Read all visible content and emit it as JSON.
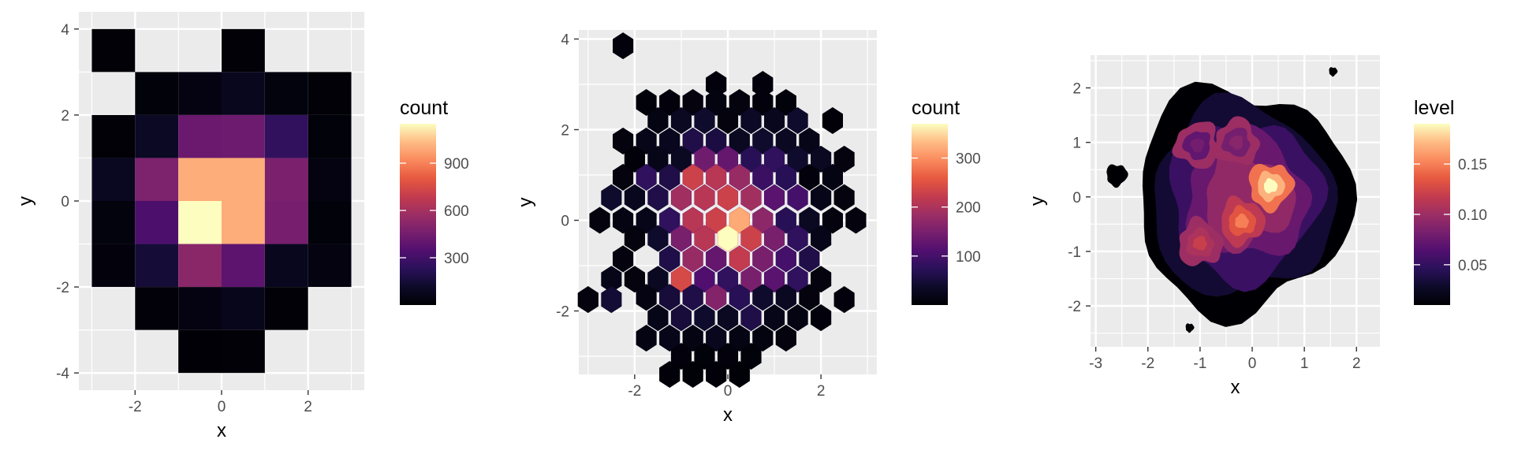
{
  "palette": [
    "#000004",
    "#0d0a29",
    "#2a115a",
    "#510f6f",
    "#771f6e",
    "#9c2e64",
    "#c43c4e",
    "#e75940",
    "#fa8a5e",
    "#febc85",
    "#fcfdbf"
  ],
  "panel_background": "#ebebeb",
  "grid_color": "#ffffff",
  "chart_data": [
    {
      "type": "heatmap",
      "name": "bin2d",
      "xlabel": "x",
      "ylabel": "y",
      "xlim": [
        -3.3,
        3.3
      ],
      "ylim": [
        -4.4,
        4.4
      ],
      "x_ticks": [
        -2,
        0,
        2
      ],
      "y_ticks": [
        -4,
        -2,
        0,
        2,
        4
      ],
      "x_tick_labels": [
        "-2",
        "0",
        "2"
      ],
      "y_tick_labels": [
        "-4",
        "-2",
        "0",
        "2",
        "4"
      ],
      "grid": true,
      "legend": {
        "title": "count",
        "ticks": [
          300,
          600,
          900
        ],
        "tick_labels": [
          "300",
          "600",
          "900"
        ],
        "range": [
          0,
          1150
        ],
        "position": "right"
      },
      "bin_width": [
        1,
        1
      ],
      "bins": [
        {
          "x": -2.5,
          "y": 3.5,
          "value": 8
        },
        {
          "x": 0.5,
          "y": 3.5,
          "value": 8
        },
        {
          "x": -1.5,
          "y": 2.5,
          "value": 20
        },
        {
          "x": -0.5,
          "y": 2.5,
          "value": 40
        },
        {
          "x": 0.5,
          "y": 2.5,
          "value": 80
        },
        {
          "x": 1.5,
          "y": 2.5,
          "value": 30
        },
        {
          "x": 2.5,
          "y": 2.5,
          "value": 10
        },
        {
          "x": -2.5,
          "y": 1.5,
          "value": 10
        },
        {
          "x": -1.5,
          "y": 1.5,
          "value": 100
        },
        {
          "x": -0.5,
          "y": 1.5,
          "value": 420
        },
        {
          "x": 0.5,
          "y": 1.5,
          "value": 430
        },
        {
          "x": 1.5,
          "y": 1.5,
          "value": 250
        },
        {
          "x": 2.5,
          "y": 1.5,
          "value": 20
        },
        {
          "x": -2.5,
          "y": 0.5,
          "value": 90
        },
        {
          "x": -1.5,
          "y": 0.5,
          "value": 480
        },
        {
          "x": -0.5,
          "y": 0.5,
          "value": 1000
        },
        {
          "x": 0.5,
          "y": 0.5,
          "value": 1000
        },
        {
          "x": 1.5,
          "y": 0.5,
          "value": 470
        },
        {
          "x": 2.5,
          "y": 0.5,
          "value": 40
        },
        {
          "x": -2.5,
          "y": -0.5,
          "value": 30
        },
        {
          "x": -1.5,
          "y": -0.5,
          "value": 330
        },
        {
          "x": -0.5,
          "y": -0.5,
          "value": 1150
        },
        {
          "x": 0.5,
          "y": -0.5,
          "value": 1000
        },
        {
          "x": 1.5,
          "y": -0.5,
          "value": 460
        },
        {
          "x": 2.5,
          "y": -0.5,
          "value": 20
        },
        {
          "x": -2.5,
          "y": -1.5,
          "value": 25
        },
        {
          "x": -1.5,
          "y": -1.5,
          "value": 150
        },
        {
          "x": -0.5,
          "y": -1.5,
          "value": 520
        },
        {
          "x": 0.5,
          "y": -1.5,
          "value": 380
        },
        {
          "x": 1.5,
          "y": -1.5,
          "value": 80
        },
        {
          "x": 2.5,
          "y": -1.5,
          "value": 35
        },
        {
          "x": -1.5,
          "y": -2.5,
          "value": 15
        },
        {
          "x": -0.5,
          "y": -2.5,
          "value": 40
        },
        {
          "x": 0.5,
          "y": -2.5,
          "value": 70
        },
        {
          "x": 1.5,
          "y": -2.5,
          "value": 10
        },
        {
          "x": -0.5,
          "y": -3.5,
          "value": 5
        },
        {
          "x": 0.5,
          "y": -3.5,
          "value": 8
        }
      ]
    },
    {
      "type": "heatmap",
      "name": "hexbin",
      "xlabel": "x",
      "ylabel": "y",
      "xlim": [
        -3.2,
        3.2
      ],
      "ylim": [
        -3.4,
        4.2
      ],
      "x_ticks": [
        -2,
        0,
        2
      ],
      "y_ticks": [
        -2,
        0,
        2,
        4
      ],
      "x_tick_labels": [
        "-2",
        "0",
        "2"
      ],
      "y_tick_labels": [
        "-2",
        "0",
        "2",
        "4"
      ],
      "grid": true,
      "legend": {
        "title": "count",
        "ticks": [
          100,
          200,
          300
        ],
        "tick_labels": [
          "100",
          "200",
          "300"
        ],
        "range": [
          0,
          370
        ],
        "position": "right"
      },
      "hex_size": [
        0.5,
        0.58
      ],
      "hexes": [
        {
          "x": -2.25,
          "y": 3.85,
          "value": 8
        },
        {
          "x": -0.25,
          "y": 3.0,
          "value": 8
        },
        {
          "x": 0.75,
          "y": 3.0,
          "value": 8
        },
        {
          "x": -1.75,
          "y": 2.6,
          "value": 6
        },
        {
          "x": -1.25,
          "y": 2.6,
          "value": 8
        },
        {
          "x": -0.75,
          "y": 2.6,
          "value": 10
        },
        {
          "x": -0.25,
          "y": 2.6,
          "value": 12
        },
        {
          "x": 0.25,
          "y": 2.6,
          "value": 10
        },
        {
          "x": 0.75,
          "y": 2.6,
          "value": 8
        },
        {
          "x": 1.25,
          "y": 2.6,
          "value": 6
        },
        {
          "x": -1.5,
          "y": 2.2,
          "value": 15
        },
        {
          "x": -1.0,
          "y": 2.2,
          "value": 30
        },
        {
          "x": -0.5,
          "y": 2.2,
          "value": 40
        },
        {
          "x": 0.0,
          "y": 2.2,
          "value": 10
        },
        {
          "x": 0.5,
          "y": 2.2,
          "value": 35
        },
        {
          "x": 1.0,
          "y": 2.2,
          "value": 25
        },
        {
          "x": 1.5,
          "y": 2.2,
          "value": 40
        },
        {
          "x": 2.25,
          "y": 2.2,
          "value": 5
        },
        {
          "x": -2.25,
          "y": 1.75,
          "value": 10
        },
        {
          "x": -1.75,
          "y": 1.75,
          "value": 20
        },
        {
          "x": -1.25,
          "y": 1.75,
          "value": 25
        },
        {
          "x": -0.75,
          "y": 1.75,
          "value": 60
        },
        {
          "x": -0.25,
          "y": 1.75,
          "value": 55
        },
        {
          "x": 0.25,
          "y": 1.75,
          "value": 30
        },
        {
          "x": 0.75,
          "y": 1.75,
          "value": 40
        },
        {
          "x": 1.25,
          "y": 1.75,
          "value": 30
        },
        {
          "x": 1.75,
          "y": 1.75,
          "value": 20
        },
        {
          "x": -2.0,
          "y": 1.35,
          "value": 5
        },
        {
          "x": -1.5,
          "y": 1.35,
          "value": 20
        },
        {
          "x": -1.0,
          "y": 1.35,
          "value": 30
        },
        {
          "x": -0.5,
          "y": 1.35,
          "value": 140
        },
        {
          "x": 0.0,
          "y": 1.35,
          "value": 130
        },
        {
          "x": 0.5,
          "y": 1.35,
          "value": 70
        },
        {
          "x": 1.0,
          "y": 1.35,
          "value": 80
        },
        {
          "x": 1.5,
          "y": 1.35,
          "value": 40
        },
        {
          "x": 2.0,
          "y": 1.35,
          "value": 30
        },
        {
          "x": 2.5,
          "y": 1.35,
          "value": 10
        },
        {
          "x": -2.25,
          "y": 0.95,
          "value": 10
        },
        {
          "x": -1.75,
          "y": 0.95,
          "value": 80
        },
        {
          "x": -1.25,
          "y": 0.95,
          "value": 60
        },
        {
          "x": -0.75,
          "y": 0.95,
          "value": 230
        },
        {
          "x": -0.25,
          "y": 0.95,
          "value": 210
        },
        {
          "x": 0.25,
          "y": 0.95,
          "value": 180
        },
        {
          "x": 0.75,
          "y": 0.95,
          "value": 90
        },
        {
          "x": 1.25,
          "y": 0.95,
          "value": 70
        },
        {
          "x": 1.75,
          "y": 0.95,
          "value": 8
        },
        {
          "x": 2.25,
          "y": 0.95,
          "value": 15
        },
        {
          "x": -2.5,
          "y": 0.5,
          "value": 40
        },
        {
          "x": -2.0,
          "y": 0.5,
          "value": 25
        },
        {
          "x": -1.5,
          "y": 0.5,
          "value": 60
        },
        {
          "x": -1.0,
          "y": 0.5,
          "value": 190
        },
        {
          "x": -0.5,
          "y": 0.5,
          "value": 210
        },
        {
          "x": 0.0,
          "y": 0.5,
          "value": 230
        },
        {
          "x": 0.5,
          "y": 0.5,
          "value": 190
        },
        {
          "x": 1.0,
          "y": 0.5,
          "value": 120
        },
        {
          "x": 1.5,
          "y": 0.5,
          "value": 100
        },
        {
          "x": 2.0,
          "y": 0.5,
          "value": 20
        },
        {
          "x": 2.5,
          "y": 0.5,
          "value": 10
        },
        {
          "x": -2.75,
          "y": 0.0,
          "value": 10
        },
        {
          "x": -2.25,
          "y": 0.0,
          "value": 15
        },
        {
          "x": -1.75,
          "y": 0.0,
          "value": 20
        },
        {
          "x": -1.25,
          "y": 0.0,
          "value": 80
        },
        {
          "x": -0.75,
          "y": 0.0,
          "value": 210
        },
        {
          "x": -0.25,
          "y": 0.0,
          "value": 230
        },
        {
          "x": 0.25,
          "y": 0.0,
          "value": 320
        },
        {
          "x": 0.75,
          "y": 0.0,
          "value": 170
        },
        {
          "x": 1.25,
          "y": 0.0,
          "value": 70
        },
        {
          "x": 1.75,
          "y": 0.0,
          "value": 30
        },
        {
          "x": 2.25,
          "y": 0.0,
          "value": 10
        },
        {
          "x": 2.75,
          "y": 0.0,
          "value": 10
        },
        {
          "x": -2.0,
          "y": -0.4,
          "value": 10
        },
        {
          "x": -1.5,
          "y": -0.4,
          "value": 40
        },
        {
          "x": -1.0,
          "y": -0.4,
          "value": 150
        },
        {
          "x": -0.5,
          "y": -0.4,
          "value": 210
        },
        {
          "x": 0.0,
          "y": -0.4,
          "value": 370
        },
        {
          "x": 0.5,
          "y": -0.4,
          "value": 230
        },
        {
          "x": 1.0,
          "y": -0.4,
          "value": 150
        },
        {
          "x": 1.5,
          "y": -0.4,
          "value": 80
        },
        {
          "x": 2.0,
          "y": -0.4,
          "value": 20
        },
        {
          "x": -2.25,
          "y": -0.85,
          "value": 10
        },
        {
          "x": -1.25,
          "y": -0.85,
          "value": 60
        },
        {
          "x": -0.75,
          "y": -0.85,
          "value": 180
        },
        {
          "x": -0.25,
          "y": -0.85,
          "value": 130
        },
        {
          "x": 0.25,
          "y": -0.85,
          "value": 220
        },
        {
          "x": 0.75,
          "y": -0.85,
          "value": 150
        },
        {
          "x": 1.25,
          "y": -0.85,
          "value": 100
        },
        {
          "x": 1.75,
          "y": -0.85,
          "value": 60
        },
        {
          "x": -2.5,
          "y": -1.3,
          "value": 20
        },
        {
          "x": -2.0,
          "y": -1.3,
          "value": 10
        },
        {
          "x": -1.5,
          "y": -1.3,
          "value": 30
        },
        {
          "x": -1.0,
          "y": -1.3,
          "value": 240
        },
        {
          "x": -0.5,
          "y": -1.3,
          "value": 110
        },
        {
          "x": 0.0,
          "y": -1.3,
          "value": 80
        },
        {
          "x": 0.5,
          "y": -1.3,
          "value": 150
        },
        {
          "x": 1.0,
          "y": -1.3,
          "value": 120
        },
        {
          "x": 1.5,
          "y": -1.3,
          "value": 80
        },
        {
          "x": 2.0,
          "y": -1.3,
          "value": 10
        },
        {
          "x": -1.75,
          "y": -1.7,
          "value": 15
        },
        {
          "x": -1.25,
          "y": -1.7,
          "value": 50
        },
        {
          "x": -0.75,
          "y": -1.7,
          "value": 60
        },
        {
          "x": -0.25,
          "y": -1.7,
          "value": 160
        },
        {
          "x": 0.25,
          "y": -1.7,
          "value": 70
        },
        {
          "x": 0.75,
          "y": -1.7,
          "value": 40
        },
        {
          "x": 1.25,
          "y": -1.7,
          "value": 30
        },
        {
          "x": 1.75,
          "y": -1.7,
          "value": 10
        },
        {
          "x": -3.0,
          "y": -1.75,
          "value": 10
        },
        {
          "x": -2.5,
          "y": -1.75,
          "value": 45
        },
        {
          "x": -1.5,
          "y": -2.15,
          "value": 20
        },
        {
          "x": -1.0,
          "y": -2.15,
          "value": 50
        },
        {
          "x": -0.5,
          "y": -2.15,
          "value": 40
        },
        {
          "x": 0.0,
          "y": -2.15,
          "value": 30
        },
        {
          "x": 0.5,
          "y": -2.15,
          "value": 60
        },
        {
          "x": 1.0,
          "y": -2.15,
          "value": 20
        },
        {
          "x": 1.5,
          "y": -2.15,
          "value": 15
        },
        {
          "x": 2.0,
          "y": -2.15,
          "value": 8
        },
        {
          "x": 2.5,
          "y": -1.75,
          "value": 8
        },
        {
          "x": -1.75,
          "y": -2.6,
          "value": 15
        },
        {
          "x": -1.25,
          "y": -2.6,
          "value": 20
        },
        {
          "x": -0.75,
          "y": -2.6,
          "value": 15
        },
        {
          "x": -0.25,
          "y": -2.6,
          "value": 25
        },
        {
          "x": 0.25,
          "y": -2.6,
          "value": 15
        },
        {
          "x": 0.75,
          "y": -2.6,
          "value": 12
        },
        {
          "x": 1.25,
          "y": -2.6,
          "value": 10
        },
        {
          "x": -1.0,
          "y": -3.0,
          "value": 8
        },
        {
          "x": -0.5,
          "y": -3.0,
          "value": 6
        },
        {
          "x": 0.0,
          "y": -3.0,
          "value": 8
        },
        {
          "x": 0.5,
          "y": -3.0,
          "value": 6
        },
        {
          "x": -1.25,
          "y": -3.4,
          "value": 5
        },
        {
          "x": -0.75,
          "y": -3.4,
          "value": 4
        },
        {
          "x": -0.25,
          "y": -3.4,
          "value": 5
        },
        {
          "x": 0.25,
          "y": -3.4,
          "value": 4
        }
      ]
    },
    {
      "type": "contour",
      "name": "density_2d_filled",
      "xlabel": "x",
      "ylabel": "y",
      "xlim": [
        -3.1,
        2.45
      ],
      "ylim": [
        -2.75,
        2.6
      ],
      "x_ticks": [
        -3,
        -2,
        -1,
        0,
        1,
        2
      ],
      "y_ticks": [
        -2,
        -1,
        0,
        1,
        2
      ],
      "x_tick_labels": [
        "-3",
        "-2",
        "-1",
        "0",
        "1",
        "2"
      ],
      "y_tick_labels": [
        "-2",
        "-1",
        "0",
        "1",
        "2"
      ],
      "grid": true,
      "legend": {
        "title": "level",
        "ticks": [
          0.05,
          0.1,
          0.15
        ],
        "tick_labels": [
          "0.05",
          "0.10",
          "0.15"
        ],
        "range": [
          0.01,
          0.19
        ],
        "position": "right"
      },
      "peaks": [
        {
          "x": 0.35,
          "y": 0.2,
          "level": 0.19
        },
        {
          "x": -0.2,
          "y": -0.45,
          "level": 0.15
        },
        {
          "x": -1.0,
          "y": -0.85,
          "level": 0.12
        },
        {
          "x": -0.3,
          "y": 1.0,
          "level": 0.09
        },
        {
          "x": -1.05,
          "y": 0.95,
          "level": 0.08
        }
      ],
      "outliers": [
        {
          "x": -2.6,
          "y": 0.4
        },
        {
          "x": 1.55,
          "y": 2.3
        },
        {
          "x": -1.2,
          "y": -2.4
        }
      ]
    }
  ]
}
